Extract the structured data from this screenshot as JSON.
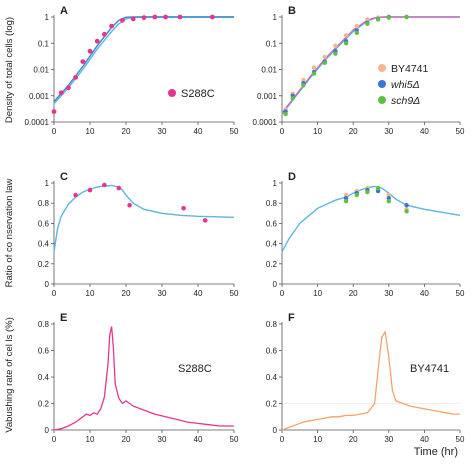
{
  "chart_data": [
    {
      "panel": "A",
      "type": "scatter",
      "scale": "log",
      "xlim": [
        0,
        50
      ],
      "ylim": [
        0.0001,
        1
      ],
      "xticks": [
        "0",
        "10",
        "20",
        "30",
        "40",
        "50"
      ],
      "yticks": [
        "1",
        "0.1",
        "0.01",
        "0.001",
        "0.0001"
      ],
      "ylabel": "Density of total cells (log)",
      "annotation": "S288C",
      "marker_color": "#e8338f",
      "fit_color": "#5bb6e0",
      "points": {
        "x": [
          0,
          2,
          4,
          6,
          8,
          10,
          12,
          14,
          16,
          19,
          22,
          25,
          28,
          31,
          35,
          44
        ],
        "y": [
          0.00025,
          0.0013,
          0.002,
          0.005,
          0.02,
          0.05,
          0.12,
          0.22,
          0.45,
          0.75,
          0.85,
          0.95,
          1,
          1,
          1,
          1
        ]
      },
      "fits": [
        {
          "x": [
            0,
            4,
            8,
            12,
            16,
            18,
            20,
            22,
            25,
            30,
            40,
            50
          ],
          "y": [
            0.0005,
            0.002,
            0.01,
            0.06,
            0.28,
            0.55,
            0.85,
            0.97,
            1,
            1,
            1,
            1
          ]
        },
        {
          "x": [
            0,
            4,
            8,
            12,
            16,
            18,
            20,
            22,
            25,
            30,
            40,
            50
          ],
          "y": [
            0.0006,
            0.0025,
            0.013,
            0.08,
            0.4,
            0.75,
            0.98,
            1,
            1,
            1,
            1,
            1
          ]
        }
      ]
    },
    {
      "panel": "B",
      "type": "scatter",
      "scale": "log",
      "xlim": [
        0,
        50
      ],
      "ylim": [
        0.0001,
        1
      ],
      "xticks": [
        "0",
        "10",
        "20",
        "30",
        "40",
        "50"
      ],
      "yticks": [
        "1",
        "0.1",
        "0.01",
        "0.001",
        "0.0001"
      ],
      "legend": [
        {
          "name": "BY4741",
          "color": "#f6b58a",
          "italic": false
        },
        {
          "name": "whi5Δ",
          "color": "#3a74d8",
          "italic": true
        },
        {
          "name": "sch9Δ",
          "color": "#5cc23d",
          "italic": true
        }
      ],
      "fit_color": "#5bb6e0",
      "fit2_color": "#c86eb4",
      "points": [
        {
          "x": [
            1,
            3,
            6,
            9,
            12,
            15,
            18,
            21,
            24,
            27,
            30,
            35
          ],
          "y": [
            0.0003,
            0.0012,
            0.004,
            0.012,
            0.03,
            0.08,
            0.2,
            0.45,
            0.8,
            0.95,
            1,
            1
          ]
        },
        {
          "x": [
            1,
            3,
            6,
            9,
            12,
            15,
            18,
            21,
            24,
            27,
            30,
            35
          ],
          "y": [
            0.00025,
            0.001,
            0.003,
            0.008,
            0.02,
            0.05,
            0.12,
            0.3,
            0.6,
            0.85,
            1,
            1
          ]
        },
        {
          "x": [
            1,
            3,
            6,
            9,
            12,
            15,
            18,
            21,
            24,
            27,
            30,
            35
          ],
          "y": [
            0.0002,
            0.0008,
            0.0025,
            0.007,
            0.018,
            0.04,
            0.1,
            0.25,
            0.55,
            0.8,
            0.95,
            1
          ]
        }
      ],
      "fits": [
        {
          "x": [
            0,
            4,
            8,
            12,
            16,
            20,
            24,
            26,
            28,
            30,
            35,
            50
          ],
          "y": [
            0.0002,
            0.001,
            0.005,
            0.022,
            0.08,
            0.28,
            0.7,
            0.9,
            0.98,
            1,
            1,
            1
          ]
        },
        {
          "x": [
            0,
            4,
            8,
            12,
            16,
            20,
            24,
            26,
            28,
            30,
            35,
            50
          ],
          "y": [
            0.00022,
            0.0011,
            0.0055,
            0.025,
            0.09,
            0.32,
            0.75,
            0.93,
            1,
            1,
            1,
            1
          ]
        }
      ]
    },
    {
      "panel": "C",
      "type": "scatter",
      "scale": "linear",
      "xlim": [
        0,
        50
      ],
      "ylim": [
        0,
        1
      ],
      "xticks": [
        "0",
        "10",
        "20",
        "30",
        "40",
        "50"
      ],
      "yticks": [
        "0",
        "0.2",
        "0.4",
        "0.6",
        "0.8",
        "1"
      ],
      "ylabel": "Ratio of co nservation law",
      "marker_color": "#e8338f",
      "fit_color": "#5bb6e0",
      "points": {
        "x": [
          6,
          10,
          14,
          18,
          21,
          36,
          42
        ],
        "y": [
          0.88,
          0.93,
          0.98,
          0.95,
          0.78,
          0.75,
          0.63
        ]
      },
      "fits": [
        {
          "x": [
            0,
            1,
            2,
            4,
            6,
            8,
            10,
            12,
            14,
            16,
            18,
            19,
            20,
            22,
            25,
            30,
            35,
            40,
            45,
            50
          ],
          "y": [
            0.32,
            0.55,
            0.67,
            0.79,
            0.86,
            0.91,
            0.94,
            0.96,
            0.97,
            0.975,
            0.96,
            0.93,
            0.88,
            0.8,
            0.74,
            0.7,
            0.68,
            0.67,
            0.665,
            0.66
          ]
        }
      ]
    },
    {
      "panel": "D",
      "type": "scatter",
      "scale": "linear",
      "xlim": [
        0,
        50
      ],
      "ylim": [
        0,
        1
      ],
      "xticks": [
        "0",
        "10",
        "20",
        "30",
        "40",
        "50"
      ],
      "yticks": [
        "0",
        "0.2",
        "0.4",
        "0.6",
        "0.8",
        "1"
      ],
      "marker_color": "#5cc23d",
      "fit_color": "#5bb6e0",
      "points": [
        {
          "x": [
            18,
            21,
            24,
            27,
            30,
            35
          ],
          "y": [
            0.88,
            0.92,
            0.95,
            0.93,
            0.88,
            0.74
          ],
          "color": "#f6b58a"
        },
        {
          "x": [
            18,
            21,
            24,
            27,
            30,
            35
          ],
          "y": [
            0.85,
            0.9,
            0.93,
            0.92,
            0.85,
            0.78
          ],
          "color": "#3a74d8"
        },
        {
          "x": [
            18,
            21,
            24,
            27,
            30,
            35
          ],
          "y": [
            0.82,
            0.88,
            0.91,
            0.95,
            0.82,
            0.72
          ],
          "color": "#5cc23d"
        }
      ],
      "fits": [
        {
          "x": [
            0,
            2,
            5,
            10,
            15,
            18,
            20,
            22,
            24,
            26,
            28,
            30,
            32,
            35,
            40,
            45,
            50
          ],
          "y": [
            0.32,
            0.45,
            0.6,
            0.75,
            0.83,
            0.86,
            0.9,
            0.93,
            0.955,
            0.965,
            0.95,
            0.9,
            0.84,
            0.78,
            0.74,
            0.71,
            0.68
          ]
        }
      ]
    },
    {
      "panel": "E",
      "type": "line",
      "scale": "linear",
      "xlim": [
        0,
        50
      ],
      "ylim": [
        0,
        0.8
      ],
      "xticks": [
        "0",
        "10",
        "20",
        "30",
        "40",
        "50"
      ],
      "yticks": [
        "0",
        "0.2",
        "0.4",
        "0.6",
        "0.8"
      ],
      "ylabel": "Vabushing rate of cel ls (%)",
      "annotation": "S288C",
      "line_color": "#e8338f",
      "x": [
        0,
        2,
        4,
        6,
        8,
        9,
        10,
        11,
        12,
        13,
        14,
        15,
        15.5,
        16,
        16.5,
        17,
        18,
        19,
        20,
        22,
        25,
        28,
        31,
        34,
        37,
        40,
        43,
        46,
        50
      ],
      "y": [
        0,
        0.01,
        0.03,
        0.06,
        0.1,
        0.12,
        0.11,
        0.13,
        0.12,
        0.16,
        0.25,
        0.5,
        0.72,
        0.78,
        0.62,
        0.35,
        0.24,
        0.2,
        0.22,
        0.18,
        0.15,
        0.12,
        0.1,
        0.08,
        0.06,
        0.05,
        0.04,
        0.03,
        0.03
      ]
    },
    {
      "panel": "F",
      "type": "line",
      "scale": "linear",
      "xlim": [
        0,
        50
      ],
      "ylim": [
        0,
        0.8
      ],
      "xticks": [
        "0",
        "10",
        "20",
        "30",
        "40",
        "50"
      ],
      "yticks": [
        "0",
        "0.2",
        "0.4",
        "0.6",
        "0.8"
      ],
      "xlabel": "Time (hr)",
      "annotation": "BY4741",
      "line_color": "#f6a36a",
      "ref_y": 0.2,
      "x": [
        0,
        2,
        4,
        6,
        8,
        10,
        12,
        14,
        16,
        18,
        20,
        22,
        24,
        26,
        27,
        28,
        29,
        30,
        31,
        32,
        34,
        36,
        38,
        40,
        42,
        44,
        46,
        48,
        50
      ],
      "y": [
        0,
        0.02,
        0.04,
        0.06,
        0.07,
        0.08,
        0.09,
        0.1,
        0.1,
        0.11,
        0.11,
        0.12,
        0.13,
        0.2,
        0.45,
        0.7,
        0.74,
        0.55,
        0.3,
        0.22,
        0.2,
        0.18,
        0.17,
        0.16,
        0.15,
        0.14,
        0.13,
        0.12,
        0.12
      ]
    }
  ]
}
